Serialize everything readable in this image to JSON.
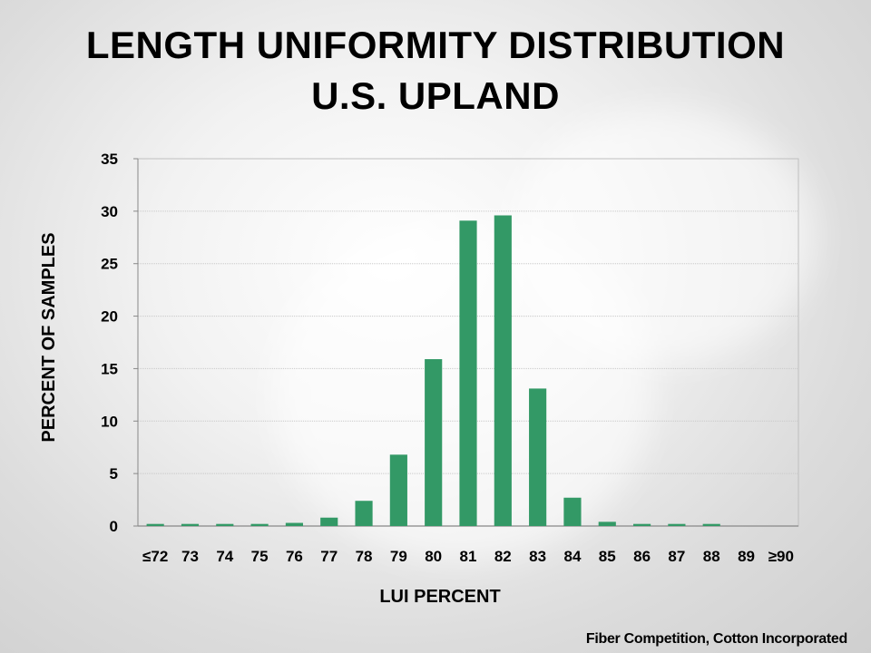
{
  "title_line1": "LENGTH UNIFORMITY DISTRIBUTION",
  "title_line2": "U.S. UPLAND",
  "source": "Fiber Competition, Cotton Incorporated",
  "bar_color": "#339966",
  "chart_data": {
    "type": "bar",
    "title": "LENGTH UNIFORMITY DISTRIBUTION U.S. UPLAND",
    "xlabel": "LUI PERCENT",
    "ylabel": "PERCENT OF SAMPLES",
    "categories": [
      "≤72",
      "73",
      "74",
      "75",
      "76",
      "77",
      "78",
      "79",
      "80",
      "81",
      "82",
      "83",
      "84",
      "85",
      "86",
      "87",
      "88",
      "89",
      "≥90"
    ],
    "values": [
      0.2,
      0.2,
      0.2,
      0.2,
      0.3,
      0.8,
      2.4,
      6.8,
      15.9,
      29.1,
      29.6,
      13.1,
      2.7,
      0.4,
      0.2,
      0.2,
      0.2,
      0,
      0
    ],
    "ylim": [
      0,
      35
    ],
    "yticks": [
      0,
      5,
      10,
      15,
      20,
      25,
      30,
      35
    ],
    "grid": true,
    "legend": "none"
  }
}
